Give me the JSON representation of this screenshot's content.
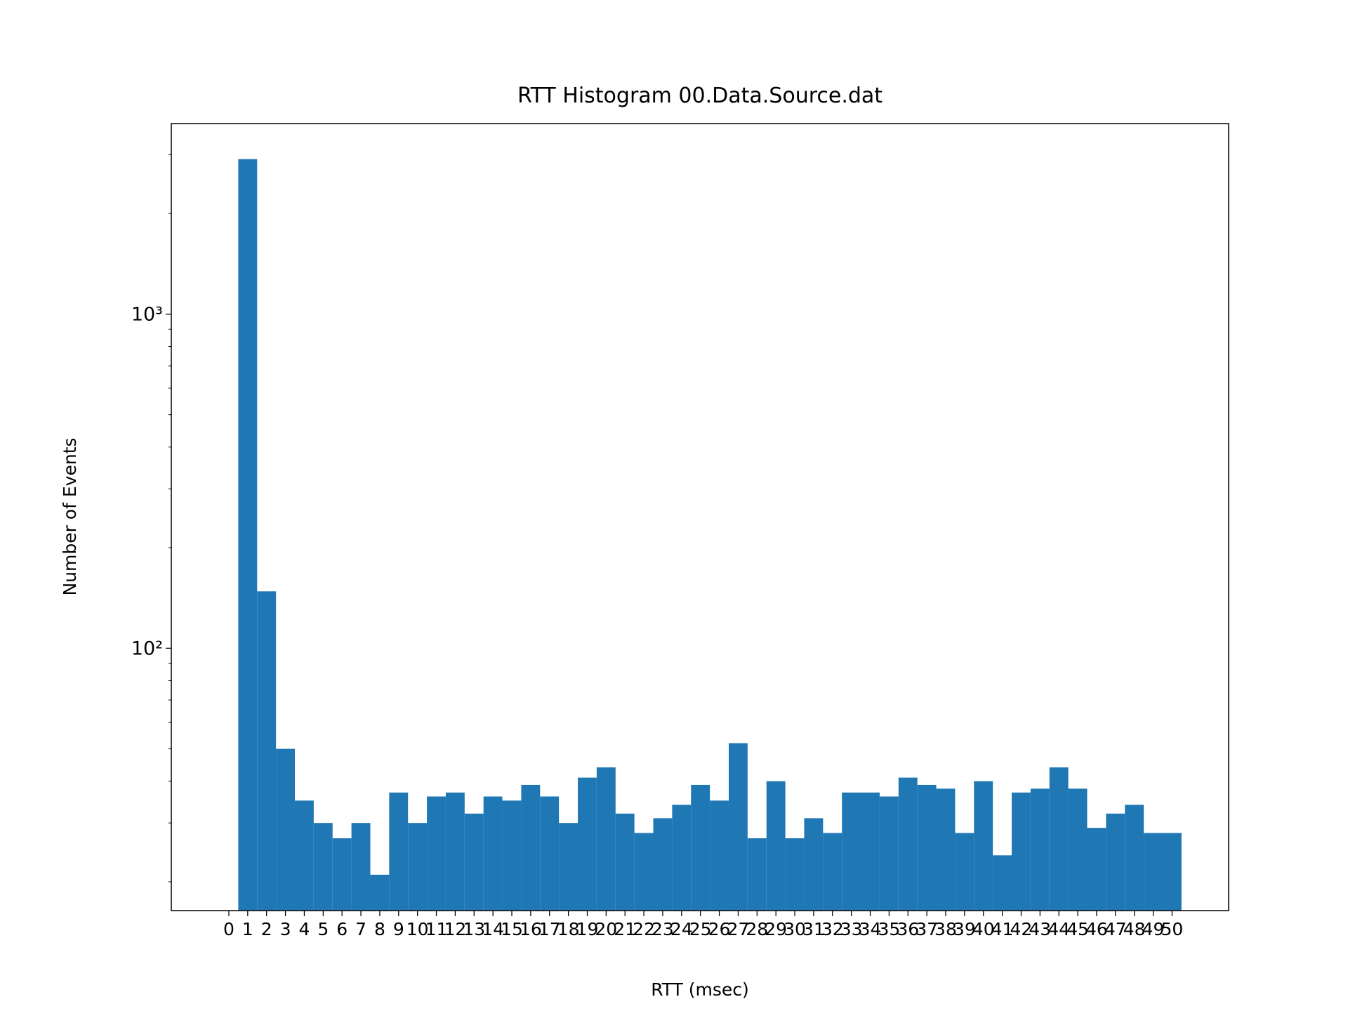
{
  "chart_data": {
    "type": "histogram",
    "title": "RTT Histogram 00.Data.Source.dat",
    "xlabel": "RTT (msec)",
    "ylabel": "Number of Events",
    "color": "#1f77b4",
    "bins": [
      0.5,
      1.5,
      2.5,
      3.5,
      4.5,
      5.5,
      6.5,
      7.5,
      8.5,
      9.5,
      10.5,
      11.5,
      12.5,
      13.5,
      14.5,
      15.5,
      16.5,
      17.5,
      18.5,
      19.5,
      20.5,
      21.5,
      22.5,
      23.5,
      24.5,
      25.5,
      26.5,
      27.5,
      28.5,
      29.5,
      30.5,
      31.5,
      32.5,
      33.5,
      34.5,
      35.5,
      36.5,
      37.5,
      38.5,
      39.5,
      40.5,
      41.5,
      42.5,
      43.5,
      44.5,
      45.5,
      46.5,
      47.5,
      48.5,
      49.5,
      50.5
    ],
    "counts": [
      2910,
      148,
      50,
      35,
      30,
      27,
      30,
      21,
      37,
      30,
      36,
      37,
      32,
      36,
      35,
      39,
      36,
      30,
      41,
      44,
      32,
      28,
      31,
      34,
      39,
      35,
      52,
      27,
      40,
      27,
      31,
      28,
      37,
      37,
      36,
      41,
      39,
      38,
      28,
      40,
      24,
      37,
      38,
      44,
      38,
      29,
      32,
      34,
      28,
      28
    ],
    "xlim": [
      -3.05,
      53.0
    ],
    "xticks": [
      0,
      1,
      2,
      3,
      4,
      5,
      6,
      7,
      8,
      9,
      10,
      11,
      12,
      13,
      14,
      15,
      16,
      17,
      18,
      19,
      20,
      21,
      22,
      23,
      24,
      25,
      26,
      27,
      28,
      29,
      30,
      31,
      32,
      33,
      34,
      35,
      36,
      37,
      38,
      39,
      40,
      41,
      42,
      43,
      44,
      45,
      46,
      47,
      48,
      49,
      50
    ],
    "ylim": [
      16.4,
      3717
    ],
    "yscale": "log",
    "yticks": [
      {
        "value": 100,
        "label": "10²"
      },
      {
        "value": 1000,
        "label": "10³"
      }
    ],
    "yminorticks": [
      20,
      30,
      40,
      50,
      60,
      70,
      80,
      90,
      200,
      300,
      400,
      500,
      600,
      700,
      800,
      900,
      2000,
      3000
    ],
    "grid": false
  }
}
